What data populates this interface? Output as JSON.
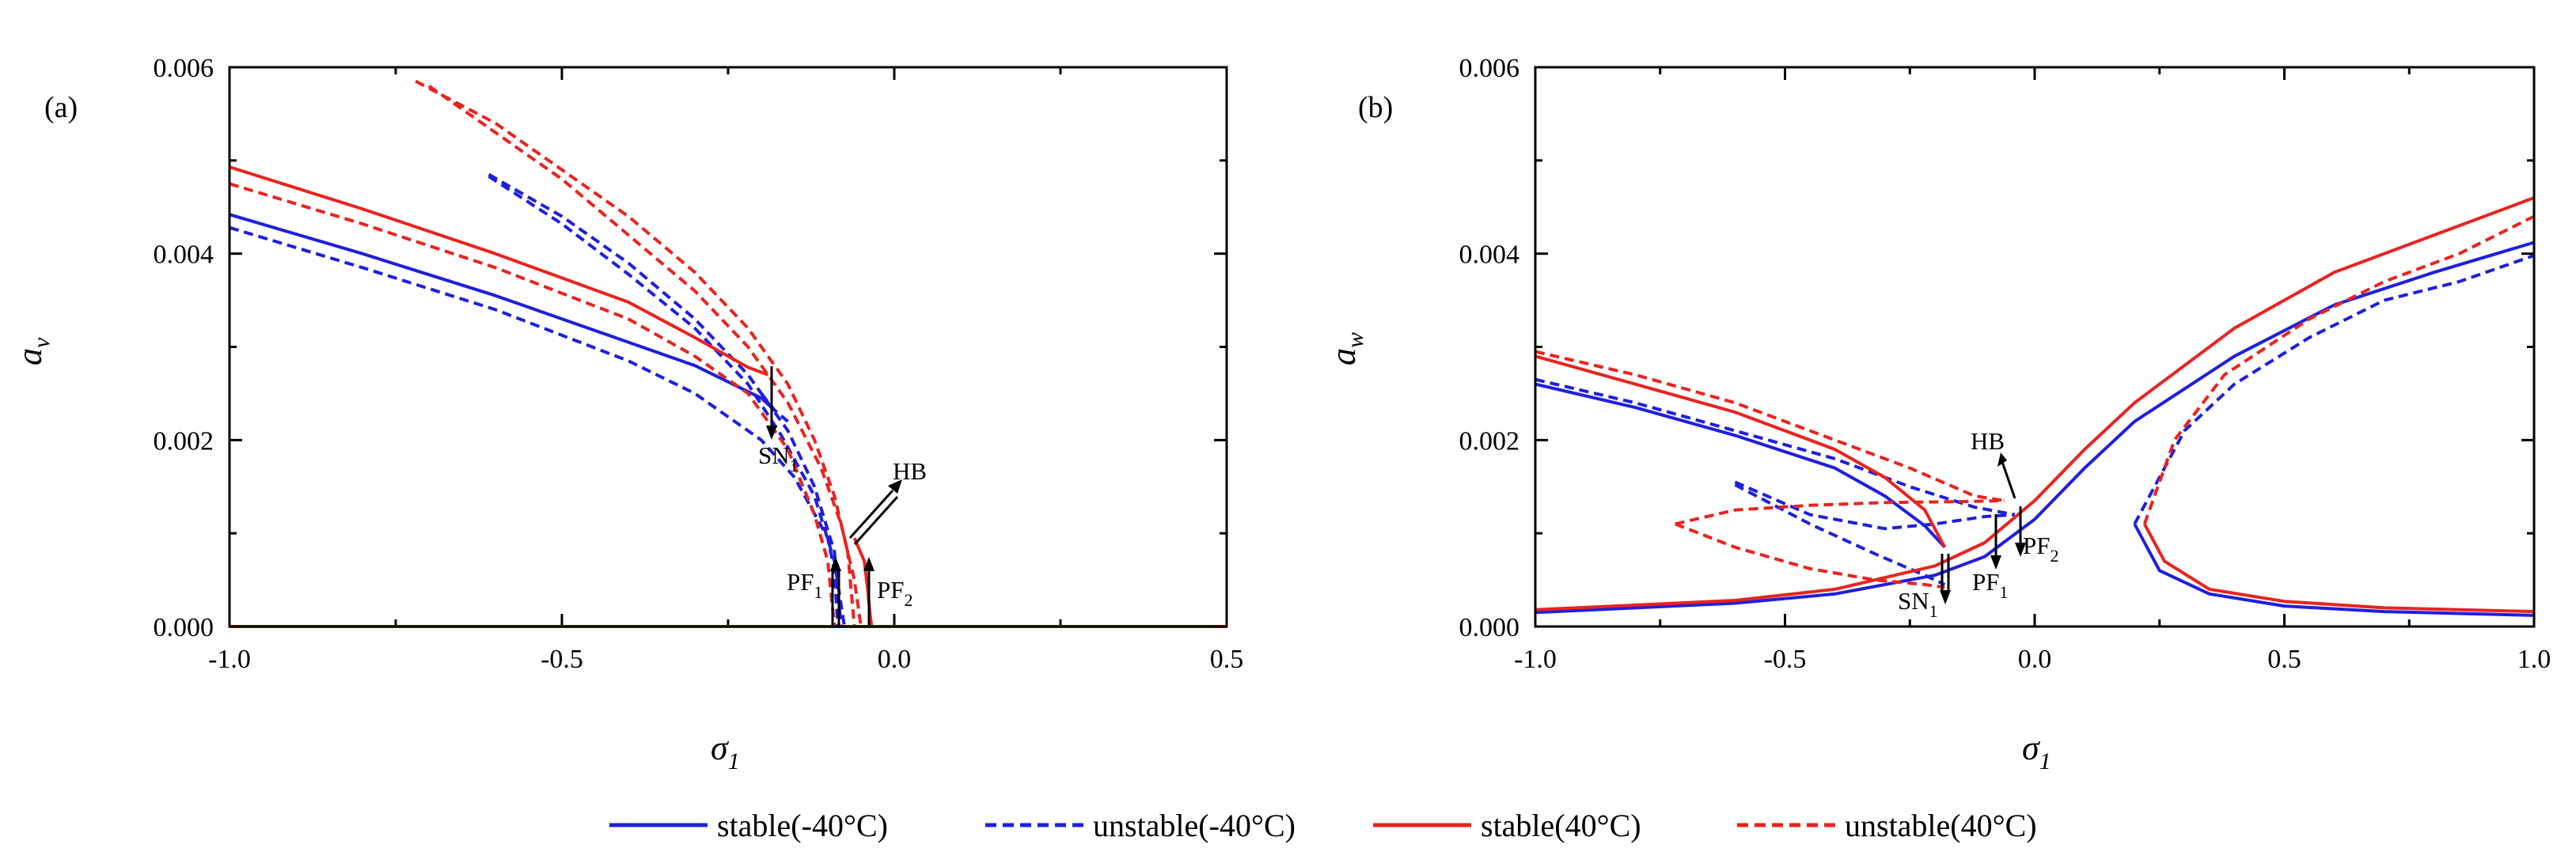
{
  "colors": {
    "blue": "#1f1fdc",
    "red": "#e8241f"
  },
  "legend": [
    {
      "label": "stable(-40°C)",
      "color": "#1f1fdc",
      "dashed": false
    },
    {
      "label": "unstable(-40°C)",
      "color": "#1f1fdc",
      "dashed": true
    },
    {
      "label": "stable(40°C)",
      "color": "#e8241f",
      "dashed": false
    },
    {
      "label": "unstable(40°C)",
      "color": "#e8241f",
      "dashed": true
    }
  ],
  "chart_data": [
    {
      "type": "line",
      "panel_label": "(a)",
      "ylabel_main": "a",
      "ylabel_sub": "v",
      "xlabel_main": "σ",
      "xlabel_sub": "1",
      "xlim": [
        -1.0,
        0.5
      ],
      "ylim": [
        0.0,
        0.006
      ],
      "xticks": [
        "-1.0",
        "-0.5",
        "0.0",
        "0.5"
      ],
      "yticks": [
        "0.000",
        "0.002",
        "0.004",
        "0.006"
      ],
      "annotations": [
        {
          "main": "SN",
          "sub": "1"
        },
        {
          "main": "HB",
          "sub": ""
        },
        {
          "main": "PF",
          "sub": "1"
        },
        {
          "main": "PF",
          "sub": "2"
        }
      ],
      "series": [
        {
          "name": "stable(-40°C)",
          "color": "#1f1fdc",
          "dashed": false,
          "x": [
            -1.0,
            -0.8,
            -0.6,
            -0.4,
            -0.3,
            -0.2,
            -0.18
          ],
          "y": [
            0.00442,
            0.004,
            0.00355,
            0.00305,
            0.0028,
            0.00245,
            0.00232
          ]
        },
        {
          "name": "unstable(-40°C)",
          "color": "#1f1fdc",
          "dashed": true,
          "x": [
            -1.0,
            -0.8,
            -0.6,
            -0.4,
            -0.3,
            -0.2,
            -0.15,
            -0.1,
            -0.09,
            -0.085
          ],
          "y": [
            0.00428,
            0.00385,
            0.0034,
            0.00285,
            0.0025,
            0.002,
            0.0016,
            0.00095,
            0.0006,
            0.0
          ]
        },
        {
          "name": "unstable(-40°C)",
          "color": "#1f1fdc",
          "dashed": true,
          "x": [
            -0.61,
            -0.5,
            -0.4,
            -0.3,
            -0.22,
            -0.16,
            -0.12,
            -0.09,
            -0.08
          ],
          "y": [
            0.00485,
            0.0044,
            0.0039,
            0.0033,
            0.0027,
            0.0021,
            0.0015,
            0.0008,
            0.0
          ]
        },
        {
          "name": "unstable(-40°C)",
          "color": "#1f1fdc",
          "dashed": true,
          "x": [
            -0.61,
            -0.5,
            -0.4,
            -0.3,
            -0.22,
            -0.17,
            -0.12,
            -0.09,
            -0.075
          ],
          "y": [
            0.00483,
            0.00432,
            0.00378,
            0.0032,
            0.0026,
            0.00205,
            0.0014,
            0.0007,
            0.0
          ]
        },
        {
          "name": "unstable(-40°C)",
          "color": "#1f1fdc",
          "dashed": true,
          "x": [
            -0.2,
            -0.18,
            -0.16
          ],
          "y": [
            0.0025,
            0.00232,
            0.0022
          ]
        },
        {
          "name": "stable(40°C)",
          "color": "#e8241f",
          "dashed": false,
          "x": [
            -1.0,
            -0.8,
            -0.6,
            -0.4,
            -0.3,
            -0.22,
            -0.19
          ],
          "y": [
            0.00493,
            0.00448,
            0.004,
            0.00348,
            0.0031,
            0.00278,
            0.0027
          ]
        },
        {
          "name": "stable(40°C)",
          "color": "#e8241f",
          "dashed": false,
          "x": [
            -0.06,
            -0.045,
            -0.04,
            -0.036,
            -0.034
          ],
          "y": [
            0.00095,
            0.0007,
            0.0004,
            0.0001,
            0.0
          ]
        },
        {
          "name": "unstable(40°C)",
          "color": "#e8241f",
          "dashed": true,
          "x": [
            -1.0,
            -0.8,
            -0.6,
            -0.4,
            -0.3,
            -0.22,
            -0.16,
            -0.12,
            -0.1,
            -0.09
          ],
          "y": [
            0.00475,
            0.00432,
            0.00385,
            0.0033,
            0.0029,
            0.0025,
            0.0019,
            0.0012,
            0.0007,
            0.0
          ]
        },
        {
          "name": "unstable(40°C)",
          "color": "#e8241f",
          "dashed": true,
          "x": [
            -0.72,
            -0.6,
            -0.5,
            -0.4,
            -0.3,
            -0.22,
            -0.16,
            -0.12,
            -0.09,
            -0.07,
            -0.06
          ],
          "y": [
            0.00585,
            0.0054,
            0.0049,
            0.0044,
            0.0038,
            0.0032,
            0.0026,
            0.002,
            0.0014,
            0.0008,
            0.0
          ]
        },
        {
          "name": "unstable(40°C)",
          "color": "#e8241f",
          "dashed": true,
          "x": [
            -0.7,
            -0.6,
            -0.5,
            -0.4,
            -0.3,
            -0.22,
            -0.16,
            -0.11,
            -0.08,
            -0.06,
            -0.05
          ],
          "y": [
            0.0058,
            0.0053,
            0.0048,
            0.0042,
            0.0036,
            0.003,
            0.0024,
            0.0017,
            0.0011,
            0.0005,
            0.0
          ]
        },
        {
          "name": "stable(-40°C)",
          "color": "#1f1fdc",
          "dashed": false,
          "x": [
            -1.0,
            0.5
          ],
          "y": [
            0.0,
            0.0
          ]
        },
        {
          "name": "stable(40°C)",
          "color": "#e8241f",
          "dashed": false,
          "x": [
            -1.0,
            0.5
          ],
          "y": [
            0.0,
            0.0
          ]
        }
      ]
    },
    {
      "type": "line",
      "panel_label": "(b)",
      "ylabel_main": "a",
      "ylabel_sub": "w",
      "xlabel_main": "σ",
      "xlabel_sub": "1",
      "xlim": [
        -1.0,
        1.0
      ],
      "ylim": [
        0.0,
        0.006
      ],
      "xticks": [
        "-1.0",
        "-0.5",
        "0.0",
        "0.5",
        "1.0"
      ],
      "yticks": [
        "0.000",
        "0.002",
        "0.004",
        "0.006"
      ],
      "annotations": [
        {
          "main": "HB",
          "sub": ""
        },
        {
          "main": "PF",
          "sub": "2"
        },
        {
          "main": "PF",
          "sub": "1"
        },
        {
          "main": "SN",
          "sub": "1"
        }
      ],
      "series": [
        {
          "name": "stable(-40°C)",
          "color": "#1f1fdc",
          "dashed": false,
          "x": [
            -1.0,
            -0.8,
            -0.6,
            -0.4,
            -0.3,
            -0.22,
            -0.18
          ],
          "y": [
            0.0026,
            0.00235,
            0.00205,
            0.0017,
            0.0014,
            0.00108,
            0.00085
          ]
        },
        {
          "name": "stable(-40°C)",
          "color": "#1f1fdc",
          "dashed": false,
          "x": [
            -1.0,
            -0.6,
            -0.4,
            -0.2,
            -0.1,
            0.0,
            0.1,
            0.2,
            0.4,
            0.6,
            0.8,
            1.0
          ],
          "y": [
            0.00015,
            0.00025,
            0.00035,
            0.00055,
            0.00075,
            0.00115,
            0.0017,
            0.0022,
            0.0029,
            0.00345,
            0.0038,
            0.00412
          ]
        },
        {
          "name": "stable(-40°C)",
          "color": "#1f1fdc",
          "dashed": false,
          "x": [
            0.2,
            0.25,
            0.35,
            0.5,
            0.7,
            1.0
          ],
          "y": [
            0.0011,
            0.0006,
            0.00035,
            0.00022,
            0.00016,
            0.00012
          ]
        },
        {
          "name": "unstable(-40°C)",
          "color": "#1f1fdc",
          "dashed": true,
          "x": [
            -1.0,
            -0.8,
            -0.6,
            -0.4,
            -0.25,
            -0.12,
            -0.04
          ],
          "y": [
            0.00265,
            0.0024,
            0.0021,
            0.0018,
            0.0015,
            0.00128,
            0.0012
          ]
        },
        {
          "name": "unstable(-40°C)",
          "color": "#1f1fdc",
          "dashed": true,
          "x": [
            -0.6,
            -0.45,
            -0.3,
            -0.2,
            -0.1,
            -0.04
          ],
          "y": [
            0.00155,
            0.0012,
            0.00105,
            0.0011,
            0.00118,
            0.0012
          ]
        },
        {
          "name": "unstable(-40°C)",
          "color": "#1f1fdc",
          "dashed": true,
          "x": [
            -0.6,
            -0.45,
            -0.32,
            -0.22,
            -0.18
          ],
          "y": [
            0.00152,
            0.0011,
            0.00078,
            0.00055,
            0.00045
          ]
        },
        {
          "name": "unstable(-40°C)",
          "color": "#1f1fdc",
          "dashed": true,
          "x": [
            0.2,
            0.3,
            0.4,
            0.55,
            0.7,
            0.85,
            1.0
          ],
          "y": [
            0.0011,
            0.0021,
            0.0026,
            0.0031,
            0.0035,
            0.0037,
            0.00398
          ]
        },
        {
          "name": "stable(40°C)",
          "color": "#e8241f",
          "dashed": false,
          "x": [
            -1.0,
            -0.8,
            -0.6,
            -0.4,
            -0.3,
            -0.22,
            -0.18
          ],
          "y": [
            0.0029,
            0.0026,
            0.0023,
            0.0019,
            0.0016,
            0.00125,
            0.00085
          ]
        },
        {
          "name": "stable(40°C)",
          "color": "#e8241f",
          "dashed": false,
          "x": [
            -1.0,
            -0.6,
            -0.4,
            -0.2,
            -0.1,
            0.0,
            0.1,
            0.2,
            0.4,
            0.6,
            0.8,
            1.0
          ],
          "y": [
            0.00018,
            0.00028,
            0.0004,
            0.00065,
            0.0009,
            0.00135,
            0.0019,
            0.0024,
            0.0032,
            0.0038,
            0.0042,
            0.0046
          ]
        },
        {
          "name": "stable(40°C)",
          "color": "#e8241f",
          "dashed": false,
          "x": [
            0.22,
            0.26,
            0.35,
            0.5,
            0.7,
            1.0
          ],
          "y": [
            0.0011,
            0.0007,
            0.0004,
            0.00027,
            0.0002,
            0.00016
          ]
        },
        {
          "name": "unstable(40°C)",
          "color": "#e8241f",
          "dashed": true,
          "x": [
            -1.0,
            -0.8,
            -0.6,
            -0.4,
            -0.25,
            -0.12,
            -0.06
          ],
          "y": [
            0.00295,
            0.0027,
            0.0024,
            0.002,
            0.0017,
            0.0014,
            0.00135
          ]
        },
        {
          "name": "unstable(40°C)",
          "color": "#e8241f",
          "dashed": true,
          "x": [
            -0.72,
            -0.6,
            -0.45,
            -0.3,
            -0.15,
            -0.06
          ],
          "y": [
            0.0011,
            0.00125,
            0.0013,
            0.00133,
            0.00134,
            0.00135
          ]
        },
        {
          "name": "unstable(40°C)",
          "color": "#e8241f",
          "dashed": true,
          "x": [
            -0.72,
            -0.6,
            -0.45,
            -0.32,
            -0.22,
            -0.18
          ],
          "y": [
            0.0011,
            0.00085,
            0.00062,
            0.0005,
            0.00045,
            0.00042
          ]
        },
        {
          "name": "unstable(40°C)",
          "color": "#e8241f",
          "dashed": true,
          "x": [
            0.22,
            0.28,
            0.38,
            0.55,
            0.7,
            0.85,
            1.0
          ],
          "y": [
            0.0011,
            0.002,
            0.0027,
            0.0033,
            0.0037,
            0.004,
            0.0044
          ]
        }
      ]
    }
  ]
}
